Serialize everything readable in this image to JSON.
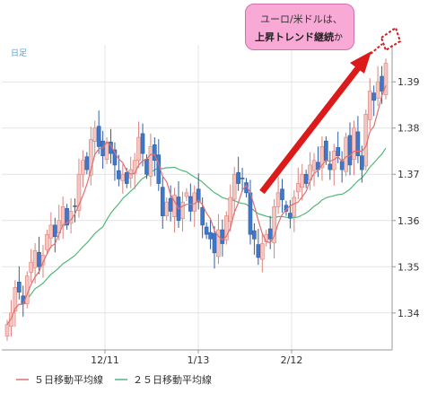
{
  "chart_data": {
    "type": "candlestick",
    "timeframe_label": "日足",
    "x_tick_labels": [
      "12/11",
      "1/13",
      "2/12"
    ],
    "y_ticks": [
      1.34,
      1.35,
      1.36,
      1.37,
      1.38,
      1.39
    ],
    "y_tick_labels": [
      "1.34",
      "1.35",
      "1.36",
      "1.37",
      "1.38",
      "1.39"
    ],
    "ylim": [
      1.332,
      1.398
    ],
    "grid": true,
    "legend_position": "bottom",
    "series": [
      {
        "name": "５日移動平均線",
        "color": "#e07070"
      },
      {
        "name": "２５日移動平均線",
        "color": "#50b878"
      }
    ],
    "up_color": "#f4c6c2",
    "up_edge": "#d9827c",
    "down_color": "#3f78c8",
    "close": [
      1.3375,
      1.34,
      1.3455,
      1.3445,
      1.342,
      1.348,
      1.351,
      1.3535,
      1.35,
      1.3525,
      1.357,
      1.359,
      1.3565,
      1.36,
      1.363,
      1.359,
      1.362,
      1.363,
      1.37,
      1.373,
      1.371,
      1.3775,
      1.38,
      1.376,
      1.374,
      1.377,
      1.3745,
      1.372,
      1.369,
      1.37,
      1.368,
      1.371,
      1.373,
      1.378,
      1.3745,
      1.37,
      1.376,
      1.373,
      1.368,
      1.361,
      1.364,
      1.362,
      1.3655,
      1.36,
      1.364,
      1.366,
      1.362,
      1.366,
      1.364,
      1.359,
      1.357,
      1.356,
      1.353,
      1.358,
      1.355,
      1.361,
      1.365,
      1.37,
      1.368,
      1.369,
      1.366,
      1.357,
      1.356,
      1.352,
      1.355,
      1.357,
      1.356,
      1.363,
      1.366,
      1.3645,
      1.362,
      1.3605,
      1.365,
      1.368,
      1.37,
      1.368,
      1.372,
      1.373,
      1.371,
      1.376,
      1.373,
      1.371,
      1.375,
      1.374,
      1.371,
      1.378,
      1.372,
      1.38,
      1.374,
      1.371,
      1.383,
      1.388,
      1.386,
      1.39,
      1.388,
      1.394
    ]
  },
  "callout": {
    "line1": "ユーロ/米ドルは、",
    "line2_bold": "上昇トレンド継続",
    "line2_suffix": "か"
  }
}
